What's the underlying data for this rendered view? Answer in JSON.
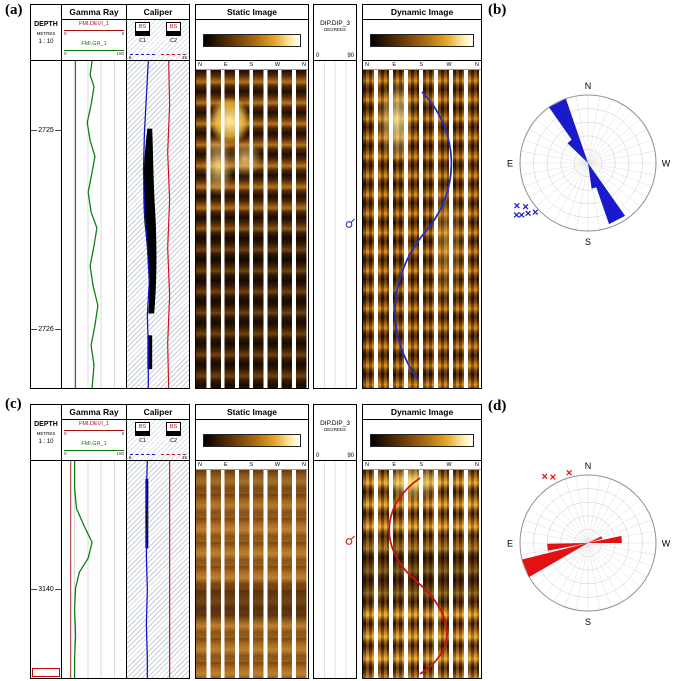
{
  "panels": {
    "a": "(a)",
    "b": "(b)",
    "c": "(c)",
    "d": "(d)"
  },
  "colors": {
    "gr_curve": "#0b7d0b",
    "devi_curve": "#992222",
    "c1_curve": "#1111cc",
    "c2_curve": "#cc1111",
    "sinusoid_a": "#2230c0",
    "sinusoid_c": "#cc1111",
    "rose_b": "#1a1acd",
    "rose_d": "#e01212"
  },
  "log_a": {
    "depth": {
      "title": "DEPTH",
      "units": "METRES",
      "scale": "1 : 10",
      "labels": [
        "2725",
        "2726"
      ]
    },
    "gamma": {
      "title": "Gamma Ray",
      "devi_name": "FMI.DEVI_1",
      "devi_min": "0",
      "devi_max": "9",
      "gr_name": "FMI.GR_1",
      "gr_min": "0",
      "gr_max": "150"
    },
    "caliper": {
      "title": "Caliper",
      "bs_left": "BS",
      "bs_right": "BS",
      "c1": "C1",
      "c2": "C2",
      "scale_min": "6",
      "scale_max": "16"
    },
    "static_image": {
      "title": "Static Image",
      "compass": [
        "N",
        "E",
        "S",
        "W",
        "N"
      ]
    },
    "dip": {
      "title": "DIP.DIP_3",
      "units": "DEGREES",
      "min": "0",
      "max": "90"
    },
    "dynamic_image": {
      "title": "Dynamic Image",
      "compass": [
        "N",
        "E",
        "S",
        "W",
        "N"
      ]
    }
  },
  "log_c": {
    "depth": {
      "title": "DEPTH",
      "units": "METRES",
      "scale": "1 : 10",
      "labels": [
        "3140"
      ]
    },
    "gamma": {
      "title": "Gamma Ray",
      "devi_name": "FMI.DEVI_1",
      "devi_min": "0",
      "devi_max": "9",
      "gr_name": "FMI.GR_1",
      "gr_min": "0",
      "gr_max": "150"
    },
    "caliper": {
      "title": "Caliper",
      "bs_left": "BS",
      "bs_right": "BS",
      "c1": "C1",
      "c2": "C2",
      "scale_min": "6",
      "scale_max": "16"
    },
    "static_image": {
      "title": "Static Image",
      "compass": [
        "N",
        "E",
        "S",
        "W",
        "N"
      ]
    },
    "dip": {
      "title": "DIP.DIP_3",
      "units": "DEGREES",
      "min": "0",
      "max": "90"
    },
    "dynamic_image": {
      "title": "Dynamic Image",
      "compass": [
        "N",
        "E",
        "S",
        "W",
        "N"
      ]
    }
  },
  "chart_data": [
    {
      "type": "rose",
      "panel": "b",
      "color": "#1a1acd",
      "east_position": "left",
      "compass": {
        "n": "N",
        "e": "E",
        "s": "S",
        "w": "W"
      },
      "grid_rings": 5,
      "grid_spoke_step_deg": 10,
      "petals": [
        {
          "azimuth_deg": 27,
          "half_width_deg": 8,
          "length": 1.0
        },
        {
          "azimuth_deg": 40,
          "half_width_deg": 6,
          "length": 0.42
        },
        {
          "azimuth_deg": 207,
          "half_width_deg": 8,
          "length": 0.95
        },
        {
          "azimuth_deg": 194,
          "half_width_deg": 6,
          "length": 0.38
        }
      ],
      "markers": [
        {
          "azimuth_deg": 121,
          "radius": 1.22
        },
        {
          "azimuth_deg": 125,
          "radius": 1.12
        },
        {
          "azimuth_deg": 128,
          "radius": 1.24
        },
        {
          "azimuth_deg": 130,
          "radius": 1.15
        },
        {
          "azimuth_deg": 133,
          "radius": 1.06
        },
        {
          "azimuth_deg": 126,
          "radius": 1.3
        }
      ],
      "marker_symbol": "x"
    },
    {
      "type": "rose",
      "panel": "d",
      "color": "#e01212",
      "east_position": "left",
      "compass": {
        "n": "N",
        "e": "E",
        "s": "S",
        "w": "W"
      },
      "grid_rings": 5,
      "grid_spoke_step_deg": 10,
      "petals": [
        {
          "azimuth_deg": 96,
          "half_width_deg": 5,
          "length": 0.6
        },
        {
          "azimuth_deg": 112,
          "half_width_deg": 8,
          "length": 1.0
        },
        {
          "azimuth_deg": 276,
          "half_width_deg": 6,
          "length": 0.5
        },
        {
          "azimuth_deg": 292,
          "half_width_deg": 5,
          "length": 0.22
        }
      ],
      "markers": [
        {
          "azimuth_deg": 33,
          "radius": 1.17
        },
        {
          "azimuth_deg": 28,
          "radius": 1.1
        },
        {
          "azimuth_deg": 15,
          "radius": 1.07
        }
      ],
      "marker_symbol": "x"
    }
  ]
}
